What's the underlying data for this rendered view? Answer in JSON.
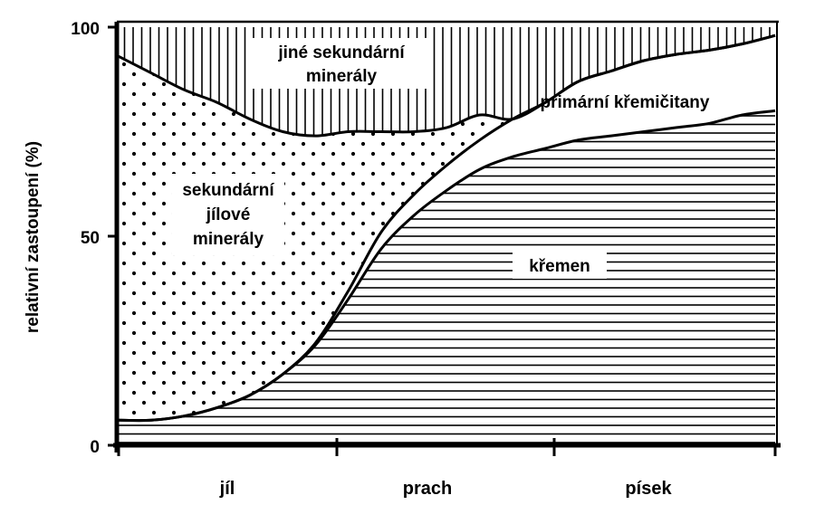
{
  "chart_data": {
    "type": "area",
    "ylabel": "relativní zastoupení (%)",
    "ylim": [
      0,
      100
    ],
    "y_ticks": [
      "0",
      "50",
      "100"
    ],
    "categories": [
      "jíl",
      "prach",
      "písek"
    ],
    "x": [
      0,
      0.05,
      0.1,
      0.15,
      0.2,
      0.25,
      0.3,
      0.35,
      0.4,
      0.45,
      0.5,
      0.55,
      0.6,
      0.65,
      0.7,
      0.75,
      0.8,
      0.85,
      0.9,
      0.95,
      1.0
    ],
    "series": [
      {
        "name": "křemen",
        "pattern": "horizontal-lines",
        "values": [
          6,
          6,
          7,
          9,
          12,
          17,
          24,
          35,
          47,
          55,
          61,
          66,
          69,
          71,
          73,
          74,
          75,
          76,
          77,
          79,
          80
        ]
      },
      {
        "name": "primární křemičitany",
        "pattern": "blank",
        "values": [
          0,
          0,
          0,
          0,
          0,
          0,
          0.5,
          2,
          4,
          5,
          6,
          7,
          9,
          11,
          14,
          15.5,
          17,
          17.5,
          17.5,
          17,
          18
        ]
      },
      {
        "name": "sekundární jílové minerály",
        "pattern": "dots",
        "values": [
          87,
          83,
          78,
          73,
          66,
          58,
          49.5,
          38,
          24,
          15,
          9,
          6,
          0,
          0,
          0,
          0,
          0,
          0,
          0,
          0,
          0
        ]
      },
      {
        "name": "jiné sekundární minerály",
        "pattern": "vertical-lines",
        "values": [
          7,
          11,
          15,
          18,
          22,
          25,
          26,
          25,
          25,
          25,
          24,
          21,
          22,
          18,
          13,
          10.5,
          8,
          6.5,
          5.5,
          4,
          2
        ]
      }
    ],
    "labels": {
      "jine": [
        "jiné sekundární",
        "minerály"
      ],
      "jilove": [
        "sekundární",
        "jílové",
        "minerály"
      ],
      "primarni": "primární křemičitany",
      "kremen": "křemen"
    },
    "colors": {
      "ink": "#000000",
      "background": "#ffffff"
    }
  }
}
